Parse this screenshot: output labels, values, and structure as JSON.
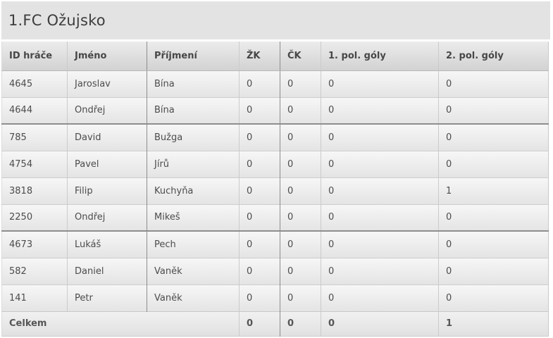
{
  "title": "1.FC Ožujsko",
  "table": {
    "columns": [
      {
        "key": "id",
        "label": "ID hráče"
      },
      {
        "key": "firstname",
        "label": "Jméno"
      },
      {
        "key": "lastname",
        "label": "Příjmení"
      },
      {
        "key": "yellow",
        "label": "ŽK"
      },
      {
        "key": "red",
        "label": "ČK"
      },
      {
        "key": "goals1",
        "label": "1. pol. góly"
      },
      {
        "key": "goals2",
        "label": "2. pol. góly"
      }
    ],
    "rows": [
      [
        "4645",
        "Jaroslav",
        "Bína",
        "0",
        "0",
        "0",
        "0"
      ],
      [
        "4644",
        "Ondřej",
        "Bína",
        "0",
        "0",
        "0",
        "0"
      ],
      [
        "785",
        "David",
        "Bužga",
        "0",
        "0",
        "0",
        "0"
      ],
      [
        "4754",
        "Pavel",
        "Jírů",
        "0",
        "0",
        "0",
        "0"
      ],
      [
        "3818",
        "Filip",
        "Kuchyňa",
        "0",
        "0",
        "0",
        "1"
      ],
      [
        "2250",
        "Ondřej",
        "Mikeš",
        "0",
        "0",
        "0",
        "0"
      ],
      [
        "4673",
        "Lukáš",
        "Pech",
        "0",
        "0",
        "0",
        "0"
      ],
      [
        "582",
        "Daniel",
        "Vaněk",
        "0",
        "0",
        "0",
        "0"
      ],
      [
        "141",
        "Petr",
        "Vaněk",
        "0",
        "0",
        "0",
        "0"
      ]
    ],
    "footer": {
      "label": "Celkem",
      "values": [
        "0",
        "0",
        "0",
        "1"
      ]
    }
  },
  "colors": {
    "title_bar_bg": "#e3e3e3",
    "header_top": "#ececec",
    "header_bottom": "#d2d2d2",
    "row_top": "#f7f7f7",
    "row_bottom": "#e4e4e4",
    "light_line": "#cbcbcb",
    "dark_line": "#8d8d8d",
    "text": "#4c4c4c"
  }
}
